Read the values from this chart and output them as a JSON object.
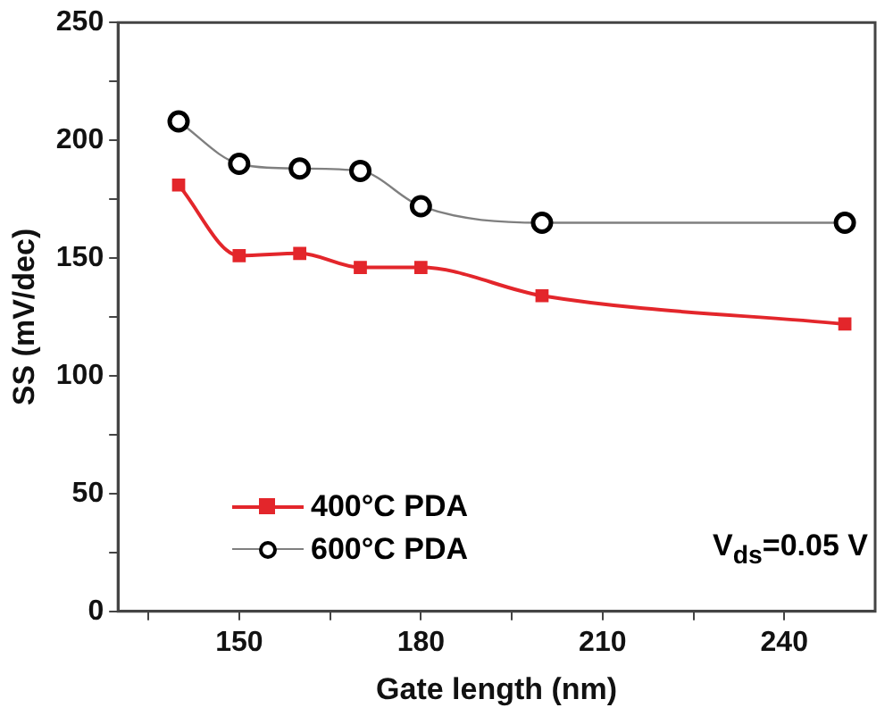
{
  "chart_data": {
    "type": "line",
    "xlabel": "Gate length (nm)",
    "ylabel": "SS (mV/dec)",
    "x": [
      140,
      150,
      160,
      170,
      180,
      200,
      250
    ],
    "series": [
      {
        "name": "400°C PDA",
        "color": "#e3262b",
        "marker": "square",
        "values": [
          181,
          151,
          152,
          146,
          146,
          134,
          122
        ]
      },
      {
        "name": "600°C PDA",
        "color": "#000000",
        "marker": "circle",
        "values": [
          208,
          190,
          188,
          187,
          172,
          165,
          165
        ]
      }
    ],
    "xlim": [
      130,
      255
    ],
    "xticks": [
      {
        "value": 135,
        "label": null
      },
      150,
      {
        "value": 165,
        "label": null
      },
      180,
      {
        "value": 195,
        "label": null
      },
      210,
      {
        "value": 225,
        "label": null
      },
      240
    ],
    "ylim": [
      0,
      250
    ],
    "yticks": [
      0,
      {
        "value": 25,
        "label": null
      },
      50,
      {
        "value": 75,
        "label": null
      },
      100,
      {
        "value": 125,
        "label": null
      },
      150,
      {
        "value": 175,
        "label": null
      },
      200,
      {
        "value": 225,
        "label": null
      },
      250
    ],
    "grid": false,
    "legend": "bottom left",
    "line_style": "solid",
    "annotations": [
      "V$_{ds}$=0.05 V"
    ]
  }
}
